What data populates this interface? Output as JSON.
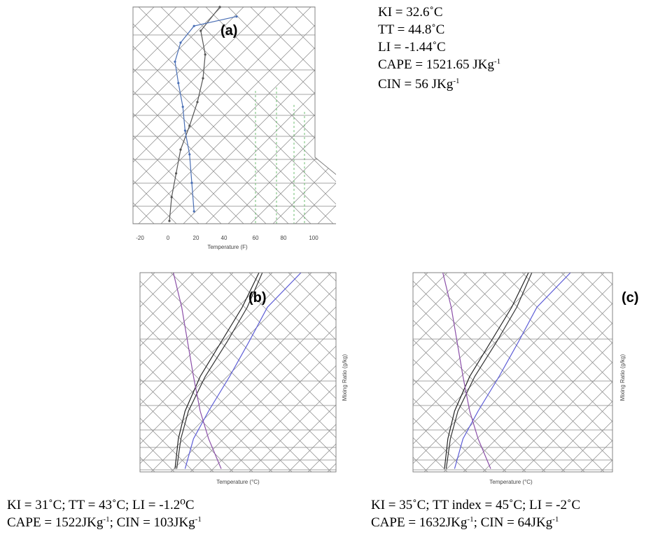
{
  "panels": [
    {
      "label": "(a)",
      "indices_lines": [
        {
          "text": "KI = 32.6˚C"
        },
        {
          "text": "TT = 44.8˚C"
        },
        {
          "text": "LI = -1.44˚C"
        },
        {
          "pre": "CAPE = 1521.65 JKg",
          "sup": "-1",
          "post": ""
        },
        {
          "pre": "CIN = 56 JKg",
          "sup": "-1",
          "post": ""
        }
      ],
      "xticks": [
        "-20",
        "0",
        "20",
        "40",
        "60",
        "80",
        "100"
      ],
      "xlabel": "Temperature (F)",
      "ylabel": ""
    },
    {
      "label": "(b)",
      "indices_lines": [
        {
          "text": "KI = 31˚C; TT = 43˚C; LI = -1.2⁰C"
        },
        {
          "pre": "CAPE = 1522JKg",
          "sup": "-1",
          "post": "; CIN = 103JKg",
          "sup2": "-1"
        }
      ],
      "xlabel": "Temperature (°C)",
      "ylabel": "Mixing Ratio (g/kg)"
    },
    {
      "label": "(c)",
      "indices_lines": [
        {
          "text": "KI = 35˚C; TT index = 45˚C; LI = -2˚C"
        },
        {
          "pre": "CAPE = 1632JKg",
          "sup": "-1",
          "post": "; CIN = 64JKg",
          "sup2": "-1"
        }
      ],
      "xlabel": "Temperature (°C)",
      "ylabel": "Mixing Ratio (g/kg)"
    }
  ],
  "chart_data": [
    {
      "type": "line",
      "title": "(a)",
      "xlabel": "Temperature (F)",
      "x_ticks": [
        -20,
        0,
        20,
        40,
        60,
        80,
        100
      ],
      "series": [
        {
          "values": [
            [
              45,
              100
            ],
            [
              28,
              200
            ],
            [
              32,
              300
            ],
            [
              30,
              400
            ],
            [
              25,
              500
            ],
            [
              18,
              600
            ],
            [
              10,
              700
            ],
            [
              6,
              800
            ],
            [
              2,
              900
            ],
            [
              0,
              1000
            ]
          ]
        },
        {
          "values": [
            [
              60,
              140
            ],
            [
              22,
              180
            ],
            [
              10,
              250
            ],
            [
              5,
              330
            ],
            [
              8,
              420
            ],
            [
              12,
              520
            ],
            [
              14,
              620
            ],
            [
              18,
              720
            ],
            [
              20,
              840
            ],
            [
              22,
              960
            ]
          ]
        }
      ]
    },
    {
      "type": "line",
      "title": "(b)",
      "xlabel": "Temperature (°C)",
      "ylabel": "Mixing Ratio (g/kg)",
      "series": [
        {
          "values": [
            [
              100,
              100
            ],
            [
              80,
              250
            ],
            [
              55,
              400
            ],
            [
              30,
              550
            ],
            [
              12,
              700
            ],
            [
              4,
              820
            ],
            [
              0,
              950
            ]
          ]
        },
        {
          "values": [
            [
              104,
              100
            ],
            [
              86,
              250
            ],
            [
              62,
              400
            ],
            [
              36,
              550
            ],
            [
              16,
              700
            ],
            [
              7,
              820
            ],
            [
              2,
              950
            ]
          ]
        },
        {
          "values": [
            [
              150,
              100
            ],
            [
              110,
              250
            ],
            [
              88,
              400
            ],
            [
              65,
              550
            ],
            [
              40,
              700
            ],
            [
              22,
              820
            ],
            [
              12,
              950
            ]
          ]
        },
        {
          "values": [
            [
              -2,
              100
            ],
            [
              8,
              250
            ],
            [
              15,
              400
            ],
            [
              22,
              550
            ],
            [
              30,
              700
            ],
            [
              40,
              820
            ],
            [
              55,
              950
            ]
          ]
        }
      ]
    },
    {
      "type": "line",
      "title": "(c)",
      "xlabel": "Temperature (°C)",
      "ylabel": "Mixing Ratio (g/kg)",
      "series": [
        {
          "values": [
            [
              100,
              100
            ],
            [
              80,
              250
            ],
            [
              55,
              400
            ],
            [
              30,
              550
            ],
            [
              12,
              700
            ],
            [
              4,
              820
            ],
            [
              0,
              950
            ]
          ]
        },
        {
          "values": [
            [
              104,
              100
            ],
            [
              86,
              250
            ],
            [
              62,
              400
            ],
            [
              36,
              550
            ],
            [
              16,
              700
            ],
            [
              7,
              820
            ],
            [
              2,
              950
            ]
          ]
        },
        {
          "values": [
            [
              150,
              100
            ],
            [
              110,
              250
            ],
            [
              88,
              400
            ],
            [
              65,
              550
            ],
            [
              40,
              700
            ],
            [
              22,
              820
            ],
            [
              12,
              950
            ]
          ]
        },
        {
          "values": [
            [
              -2,
              100
            ],
            [
              8,
              250
            ],
            [
              15,
              400
            ],
            [
              22,
              550
            ],
            [
              30,
              700
            ],
            [
              40,
              820
            ],
            [
              55,
              950
            ]
          ]
        }
      ]
    }
  ]
}
